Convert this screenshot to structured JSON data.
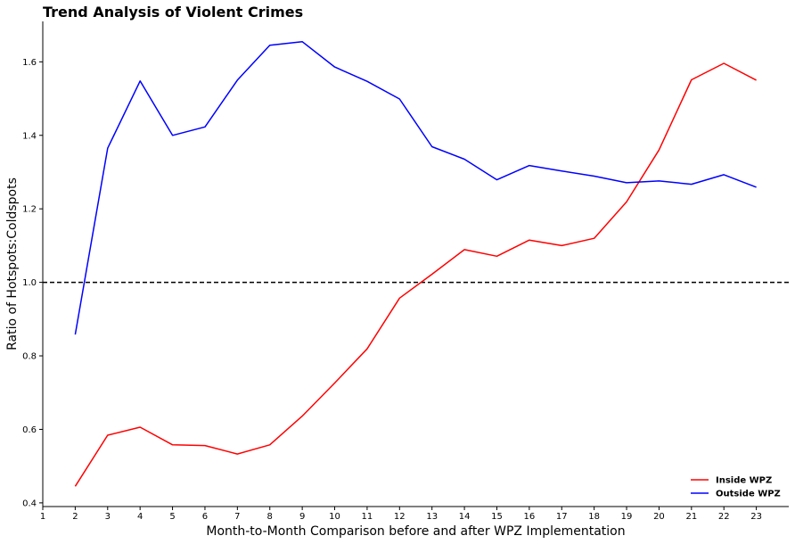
{
  "chart_data": {
    "type": "line",
    "title": "Trend Analysis of Violent Crimes",
    "xlabel": "Month-to-Month Comparison before and after WPZ Implementation",
    "ylabel": "Ratio of Hotspots:Coldspots",
    "xlim": [
      1,
      24
    ],
    "ylim": [
      0.39,
      1.71
    ],
    "xticks": [
      1,
      2,
      3,
      4,
      5,
      6,
      7,
      8,
      9,
      10,
      11,
      12,
      13,
      14,
      15,
      16,
      17,
      18,
      19,
      20,
      21,
      22,
      23
    ],
    "yticks": [
      0.4,
      0.6,
      0.8,
      1.0,
      1.2,
      1.4,
      1.6
    ],
    "ytick_labels": [
      "0.4",
      "0.6",
      "0.8",
      "1.0",
      "1.2",
      "1.4",
      "1.6"
    ],
    "x": [
      2,
      3,
      4,
      5,
      6,
      7,
      8,
      9,
      10,
      11,
      12,
      13,
      14,
      15,
      16,
      17,
      18,
      19,
      20,
      21,
      22,
      23
    ],
    "series": [
      {
        "name": "Inside WPZ",
        "color": "#ff0000",
        "values": [
          0.445,
          0.584,
          0.606,
          0.558,
          0.556,
          0.533,
          0.558,
          0.636,
          0.726,
          0.819,
          0.957,
          1.022,
          1.089,
          1.071,
          1.115,
          1.1,
          1.12,
          1.219,
          1.36,
          1.551,
          1.596,
          1.55
        ]
      },
      {
        "name": "Outside WPZ",
        "color": "#0000ff",
        "values": [
          0.858,
          1.365,
          1.548,
          1.4,
          1.423,
          1.55,
          1.645,
          1.655,
          1.586,
          1.547,
          1.499,
          1.369,
          1.335,
          1.279,
          1.318,
          1.303,
          1.289,
          1.271,
          1.276,
          1.267,
          1.293,
          1.259
        ]
      }
    ],
    "reference_line": {
      "y": 1.0,
      "style": "dashed",
      "color": "#000000"
    },
    "legend": {
      "placement": "lower-right"
    },
    "grid": false
  }
}
